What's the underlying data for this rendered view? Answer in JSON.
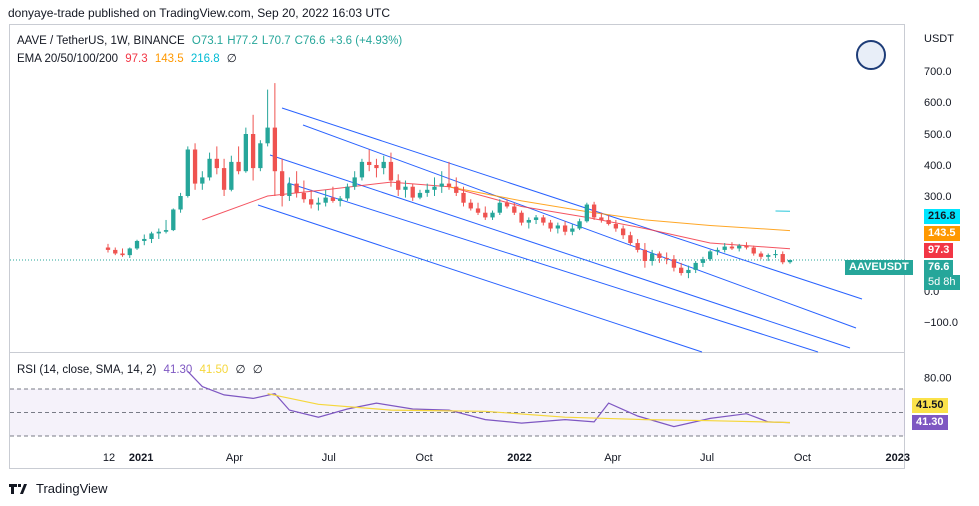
{
  "header": {
    "text": "donyaye-trade published on TradingView.com, Sep 20, 2022 16:03 UTC"
  },
  "legend": {
    "symbol": "AAVE / TetherUS, 1W, BINANCE",
    "open": "O73.1",
    "high": "H77.2",
    "low": "L70.7",
    "close": "C76.6",
    "change": "+3.6 (+4.93%)",
    "ema_label": "EMA 20/50/100/200",
    "ema20": "97.3",
    "ema50": "143.5",
    "ema100": "216.8",
    "ema200": "∅"
  },
  "rsi_legend": {
    "label": "RSI (14, close, SMA, 14, 2)",
    "rsi": "41.30",
    "sma": "41.50",
    "v3": "∅",
    "v4": "∅"
  },
  "currency": "USDT",
  "price_ticks": [
    "700.0",
    "600.0",
    "500.0",
    "400.0",
    "300.0",
    "0.0",
    "−100.0"
  ],
  "rsi_ticks": [
    "80.00"
  ],
  "time_ticks": [
    "12",
    "2021",
    "Apr",
    "Jul",
    "Oct",
    "2022",
    "Apr",
    "Jul",
    "Oct",
    "2023"
  ],
  "price_tags": {
    "ema100": "216.8",
    "ema50": "143.5",
    "ema20": "97.3",
    "symbol": "AAVEUSDT",
    "last": "76.6",
    "countdown": "5d 8h"
  },
  "rsi_tags": {
    "sma": "41.50",
    "rsi": "41.30"
  },
  "footer": {
    "brand": "TradingView"
  },
  "colors": {
    "up": "#26a69a",
    "down": "#ef5350",
    "ema20": "#f23645",
    "ema50": "#ff9800",
    "ema100": "#00bcd4",
    "rsi": "#7e57c2",
    "rsi_sma": "#f5d73b",
    "channel": "#2962ff"
  },
  "chart_data": [
    {
      "type": "candlestick",
      "title": "AAVE / TetherUS, 1W, BINANCE",
      "ylabel": "USDT",
      "ylim": [
        -150,
        750
      ],
      "scale": "log",
      "candles": [
        {
          "t": "2020-11-30",
          "o": 100,
          "h": 108,
          "l": 90,
          "c": 95
        },
        {
          "t": "2020-12-07",
          "o": 95,
          "h": 100,
          "l": 85,
          "c": 88
        },
        {
          "t": "2020-12-14",
          "o": 88,
          "h": 98,
          "l": 82,
          "c": 85
        },
        {
          "t": "2020-12-21",
          "o": 85,
          "h": 100,
          "l": 80,
          "c": 98
        },
        {
          "t": "2020-12-28",
          "o": 98,
          "h": 118,
          "l": 95,
          "c": 115
        },
        {
          "t": "2021-01-04",
          "o": 115,
          "h": 132,
          "l": 105,
          "c": 120
        },
        {
          "t": "2021-01-11",
          "o": 120,
          "h": 140,
          "l": 110,
          "c": 135
        },
        {
          "t": "2021-01-18",
          "o": 135,
          "h": 150,
          "l": 120,
          "c": 140
        },
        {
          "t": "2021-01-25",
          "o": 140,
          "h": 180,
          "l": 135,
          "c": 145
        },
        {
          "t": "2021-02-01",
          "o": 145,
          "h": 230,
          "l": 142,
          "c": 225
        },
        {
          "t": "2021-02-08",
          "o": 225,
          "h": 310,
          "l": 210,
          "c": 300
        },
        {
          "t": "2021-02-15",
          "o": 300,
          "h": 460,
          "l": 290,
          "c": 450
        },
        {
          "t": "2021-02-22",
          "o": 450,
          "h": 470,
          "l": 320,
          "c": 340
        },
        {
          "t": "2021-03-01",
          "o": 340,
          "h": 380,
          "l": 320,
          "c": 360
        },
        {
          "t": "2021-03-08",
          "o": 360,
          "h": 440,
          "l": 350,
          "c": 420
        },
        {
          "t": "2021-03-15",
          "o": 420,
          "h": 460,
          "l": 370,
          "c": 390
        },
        {
          "t": "2021-03-22",
          "o": 390,
          "h": 420,
          "l": 300,
          "c": 320
        },
        {
          "t": "2021-03-29",
          "o": 320,
          "h": 430,
          "l": 315,
          "c": 410
        },
        {
          "t": "2021-04-05",
          "o": 410,
          "h": 460,
          "l": 370,
          "c": 380
        },
        {
          "t": "2021-04-12",
          "o": 380,
          "h": 520,
          "l": 375,
          "c": 500
        },
        {
          "t": "2021-04-19",
          "o": 500,
          "h": 560,
          "l": 350,
          "c": 390
        },
        {
          "t": "2021-04-26",
          "o": 390,
          "h": 480,
          "l": 380,
          "c": 470
        },
        {
          "t": "2021-05-03",
          "o": 470,
          "h": 640,
          "l": 460,
          "c": 520
        },
        {
          "t": "2021-05-10",
          "o": 520,
          "h": 661,
          "l": 300,
          "c": 380
        },
        {
          "t": "2021-05-17",
          "o": 380,
          "h": 420,
          "l": 240,
          "c": 300
        },
        {
          "t": "2021-05-24",
          "o": 300,
          "h": 360,
          "l": 270,
          "c": 340
        },
        {
          "t": "2021-05-31",
          "o": 340,
          "h": 380,
          "l": 290,
          "c": 310
        },
        {
          "t": "2021-06-07",
          "o": 310,
          "h": 350,
          "l": 260,
          "c": 280
        },
        {
          "t": "2021-06-14",
          "o": 280,
          "h": 320,
          "l": 230,
          "c": 250
        },
        {
          "t": "2021-06-21",
          "o": 250,
          "h": 290,
          "l": 220,
          "c": 260
        },
        {
          "t": "2021-06-28",
          "o": 260,
          "h": 320,
          "l": 240,
          "c": 290
        },
        {
          "t": "2021-07-05",
          "o": 290,
          "h": 330,
          "l": 260,
          "c": 270
        },
        {
          "t": "2021-07-12",
          "o": 270,
          "h": 300,
          "l": 240,
          "c": 285
        },
        {
          "t": "2021-07-19",
          "o": 285,
          "h": 340,
          "l": 270,
          "c": 330
        },
        {
          "t": "2021-07-26",
          "o": 330,
          "h": 380,
          "l": 320,
          "c": 360
        },
        {
          "t": "2021-08-02",
          "o": 360,
          "h": 420,
          "l": 350,
          "c": 410
        },
        {
          "t": "2021-08-09",
          "o": 410,
          "h": 450,
          "l": 380,
          "c": 400
        },
        {
          "t": "2021-08-16",
          "o": 400,
          "h": 420,
          "l": 360,
          "c": 390
        },
        {
          "t": "2021-08-23",
          "o": 390,
          "h": 430,
          "l": 370,
          "c": 410
        },
        {
          "t": "2021-08-30",
          "o": 410,
          "h": 440,
          "l": 330,
          "c": 350
        },
        {
          "t": "2021-09-06",
          "o": 350,
          "h": 370,
          "l": 300,
          "c": 320
        },
        {
          "t": "2021-09-13",
          "o": 320,
          "h": 350,
          "l": 290,
          "c": 330
        },
        {
          "t": "2021-09-20",
          "o": 330,
          "h": 340,
          "l": 270,
          "c": 290
        },
        {
          "t": "2021-09-27",
          "o": 290,
          "h": 320,
          "l": 280,
          "c": 310
        },
        {
          "t": "2021-10-04",
          "o": 310,
          "h": 340,
          "l": 295,
          "c": 320
        },
        {
          "t": "2021-10-11",
          "o": 320,
          "h": 360,
          "l": 300,
          "c": 330
        },
        {
          "t": "2021-10-18",
          "o": 330,
          "h": 380,
          "l": 310,
          "c": 340
        },
        {
          "t": "2021-10-25",
          "o": 340,
          "h": 410,
          "l": 320,
          "c": 330
        },
        {
          "t": "2021-11-01",
          "o": 330,
          "h": 360,
          "l": 300,
          "c": 310
        },
        {
          "t": "2021-11-08",
          "o": 310,
          "h": 330,
          "l": 240,
          "c": 260
        },
        {
          "t": "2021-11-15",
          "o": 260,
          "h": 280,
          "l": 220,
          "c": 230
        },
        {
          "t": "2021-11-22",
          "o": 230,
          "h": 260,
          "l": 200,
          "c": 210
        },
        {
          "t": "2021-11-29",
          "o": 210,
          "h": 240,
          "l": 180,
          "c": 190
        },
        {
          "t": "2021-12-06",
          "o": 190,
          "h": 220,
          "l": 180,
          "c": 210
        },
        {
          "t": "2021-12-13",
          "o": 210,
          "h": 280,
          "l": 200,
          "c": 260
        },
        {
          "t": "2021-12-20",
          "o": 260,
          "h": 280,
          "l": 230,
          "c": 240
        },
        {
          "t": "2021-12-27",
          "o": 240,
          "h": 260,
          "l": 200,
          "c": 210
        },
        {
          "t": "2022-01-03",
          "o": 210,
          "h": 220,
          "l": 160,
          "c": 170
        },
        {
          "t": "2022-01-10",
          "o": 170,
          "h": 190,
          "l": 150,
          "c": 180
        },
        {
          "t": "2022-01-17",
          "o": 180,
          "h": 200,
          "l": 165,
          "c": 190
        },
        {
          "t": "2022-01-24",
          "o": 190,
          "h": 200,
          "l": 160,
          "c": 170
        },
        {
          "t": "2022-01-31",
          "o": 170,
          "h": 180,
          "l": 140,
          "c": 150
        },
        {
          "t": "2022-02-07",
          "o": 150,
          "h": 170,
          "l": 135,
          "c": 160
        },
        {
          "t": "2022-02-14",
          "o": 160,
          "h": 175,
          "l": 130,
          "c": 140
        },
        {
          "t": "2022-02-21",
          "o": 140,
          "h": 165,
          "l": 130,
          "c": 150
        },
        {
          "t": "2022-02-28",
          "o": 150,
          "h": 185,
          "l": 145,
          "c": 175
        },
        {
          "t": "2022-03-07",
          "o": 175,
          "h": 260,
          "l": 170,
          "c": 250
        },
        {
          "t": "2022-03-14",
          "o": 250,
          "h": 265,
          "l": 180,
          "c": 190
        },
        {
          "t": "2022-03-21",
          "o": 190,
          "h": 210,
          "l": 170,
          "c": 180
        },
        {
          "t": "2022-03-28",
          "o": 180,
          "h": 200,
          "l": 160,
          "c": 165
        },
        {
          "t": "2022-04-04",
          "o": 165,
          "h": 180,
          "l": 140,
          "c": 150
        },
        {
          "t": "2022-04-11",
          "o": 150,
          "h": 160,
          "l": 120,
          "c": 130
        },
        {
          "t": "2022-04-18",
          "o": 130,
          "h": 140,
          "l": 105,
          "c": 110
        },
        {
          "t": "2022-04-25",
          "o": 110,
          "h": 120,
          "l": 90,
          "c": 95
        },
        {
          "t": "2022-05-02",
          "o": 95,
          "h": 110,
          "l": 65,
          "c": 75
        },
        {
          "t": "2022-05-09",
          "o": 75,
          "h": 95,
          "l": 68,
          "c": 88
        },
        {
          "t": "2022-05-16",
          "o": 88,
          "h": 92,
          "l": 72,
          "c": 80
        },
        {
          "t": "2022-05-23",
          "o": 80,
          "h": 90,
          "l": 70,
          "c": 78
        },
        {
          "t": "2022-05-30",
          "o": 78,
          "h": 85,
          "l": 60,
          "c": 65
        },
        {
          "t": "2022-06-06",
          "o": 65,
          "h": 72,
          "l": 55,
          "c": 58
        },
        {
          "t": "2022-06-13",
          "o": 58,
          "h": 68,
          "l": 52,
          "c": 62
        },
        {
          "t": "2022-06-20",
          "o": 62,
          "h": 75,
          "l": 58,
          "c": 72
        },
        {
          "t": "2022-06-27",
          "o": 72,
          "h": 82,
          "l": 66,
          "c": 78
        },
        {
          "t": "2022-07-04",
          "o": 78,
          "h": 95,
          "l": 75,
          "c": 92
        },
        {
          "t": "2022-07-11",
          "o": 92,
          "h": 100,
          "l": 85,
          "c": 95
        },
        {
          "t": "2022-07-18",
          "o": 95,
          "h": 110,
          "l": 90,
          "c": 102
        },
        {
          "t": "2022-07-25",
          "o": 102,
          "h": 112,
          "l": 95,
          "c": 98
        },
        {
          "t": "2022-08-01",
          "o": 98,
          "h": 108,
          "l": 92,
          "c": 104
        },
        {
          "t": "2022-08-08",
          "o": 104,
          "h": 112,
          "l": 96,
          "c": 100
        },
        {
          "t": "2022-08-15",
          "o": 100,
          "h": 104,
          "l": 84,
          "c": 88
        },
        {
          "t": "2022-08-22",
          "o": 88,
          "h": 92,
          "l": 78,
          "c": 82
        },
        {
          "t": "2022-08-29",
          "o": 82,
          "h": 88,
          "l": 75,
          "c": 85
        },
        {
          "t": "2022-09-05",
          "o": 85,
          "h": 95,
          "l": 80,
          "c": 87
        },
        {
          "t": "2022-09-12",
          "o": 87,
          "h": 92,
          "l": 70,
          "c": 73
        },
        {
          "t": "2022-09-19",
          "o": 73.1,
          "h": 77.2,
          "l": 70.7,
          "c": 76.6
        }
      ],
      "series": [
        {
          "name": "EMA 20",
          "color": "#f23645",
          "values": [
            {
              "t": "2021-03-01",
              "v": 180
            },
            {
              "t": "2021-05-03",
              "v": 300
            },
            {
              "t": "2021-06-28",
              "v": 320
            },
            {
              "t": "2021-08-30",
              "v": 345
            },
            {
              "t": "2021-10-25",
              "v": 330
            },
            {
              "t": "2022-01-03",
              "v": 240
            },
            {
              "t": "2022-03-07",
              "v": 190
            },
            {
              "t": "2022-05-02",
              "v": 150
            },
            {
              "t": "2022-07-04",
              "v": 110
            },
            {
              "t": "2022-09-19",
              "v": 97.3
            }
          ]
        },
        {
          "name": "EMA 50",
          "color": "#ff9800",
          "values": [
            {
              "t": "2021-10-25",
              "v": 330
            },
            {
              "t": "2022-01-03",
              "v": 270
            },
            {
              "t": "2022-03-07",
              "v": 215
            },
            {
              "t": "2022-05-02",
              "v": 180
            },
            {
              "t": "2022-07-04",
              "v": 160
            },
            {
              "t": "2022-09-19",
              "v": 143.5
            }
          ]
        },
        {
          "name": "EMA 100",
          "color": "#00bcd4",
          "values": [
            {
              "t": "2022-09-05",
              "v": 218
            },
            {
              "t": "2022-09-19",
              "v": 216.8
            }
          ]
        }
      ]
    },
    {
      "type": "line",
      "title": "RSI (14, close, SMA, 14, 2)",
      "ylim": [
        20,
        90
      ],
      "bands": [
        70,
        30
      ],
      "series": [
        {
          "name": "RSI",
          "color": "#7e57c2",
          "values": [
            {
              "t": "2021-02-15",
              "v": 85
            },
            {
              "t": "2021-03-01",
              "v": 72
            },
            {
              "t": "2021-03-22",
              "v": 65
            },
            {
              "t": "2021-04-19",
              "v": 62
            },
            {
              "t": "2021-05-10",
              "v": 66
            },
            {
              "t": "2021-05-24",
              "v": 52
            },
            {
              "t": "2021-06-21",
              "v": 46
            },
            {
              "t": "2021-07-19",
              "v": 53
            },
            {
              "t": "2021-08-16",
              "v": 58
            },
            {
              "t": "2021-09-20",
              "v": 53
            },
            {
              "t": "2021-10-25",
              "v": 52
            },
            {
              "t": "2021-11-29",
              "v": 44
            },
            {
              "t": "2022-01-03",
              "v": 41
            },
            {
              "t": "2022-02-14",
              "v": 44
            },
            {
              "t": "2022-03-14",
              "v": 42
            },
            {
              "t": "2022-03-28",
              "v": 58
            },
            {
              "t": "2022-04-25",
              "v": 47
            },
            {
              "t": "2022-05-30",
              "v": 38
            },
            {
              "t": "2022-07-04",
              "v": 45
            },
            {
              "t": "2022-08-08",
              "v": 49
            },
            {
              "t": "2022-08-29",
              "v": 42
            },
            {
              "t": "2022-09-19",
              "v": 41.3
            }
          ]
        },
        {
          "name": "SMA",
          "color": "#f5d73b",
          "values": [
            {
              "t": "2021-05-03",
              "v": 66
            },
            {
              "t": "2021-06-21",
              "v": 57
            },
            {
              "t": "2021-08-30",
              "v": 52
            },
            {
              "t": "2021-11-29",
              "v": 51
            },
            {
              "t": "2022-02-14",
              "v": 46
            },
            {
              "t": "2022-05-02",
              "v": 44
            },
            {
              "t": "2022-07-04",
              "v": 43
            },
            {
              "t": "2022-09-19",
              "v": 41.5
            }
          ]
        }
      ]
    }
  ]
}
